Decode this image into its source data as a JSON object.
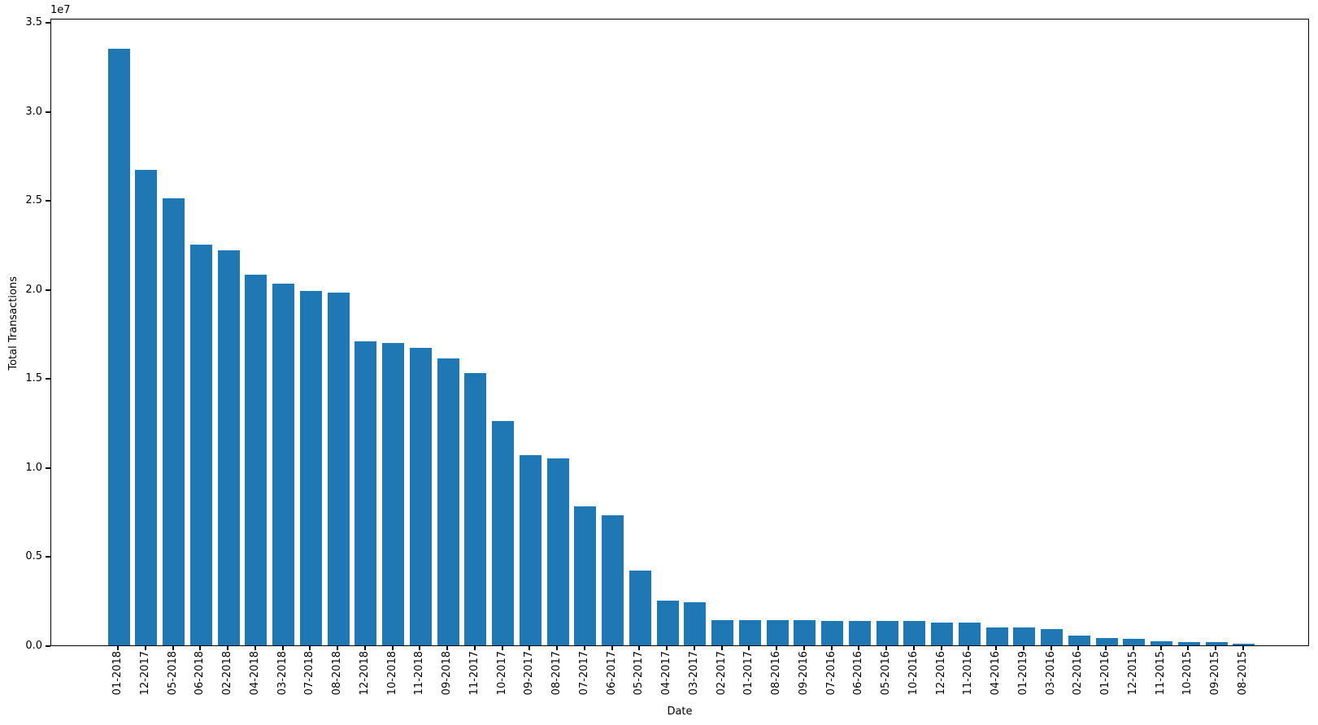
{
  "figure": {
    "background_color": "#ffffff",
    "axis_color": "#000000"
  },
  "chart_data": {
    "type": "bar",
    "title": "",
    "xlabel": "Date",
    "ylabel": "Total Transactions",
    "y_offset_text": "1e7",
    "bar_color": "#1f77b4",
    "grid": false,
    "legend": false,
    "ylim": [
      0,
      35000000
    ],
    "ytick_values": [
      0,
      5000000,
      10000000,
      15000000,
      20000000,
      25000000,
      30000000,
      35000000
    ],
    "ytick_labels": [
      "0.0",
      "0.5",
      "1.0",
      "1.5",
      "2.0",
      "2.5",
      "3.0",
      "3.5"
    ],
    "x_tick_rotation_deg": 90,
    "categories": [
      "01-2018",
      "12-2017",
      "05-2018",
      "06-2018",
      "02-2018",
      "04-2018",
      "03-2018",
      "07-2018",
      "08-2018",
      "12-2018",
      "10-2018",
      "11-2018",
      "09-2018",
      "11-2017",
      "10-2017",
      "09-2017",
      "08-2017",
      "07-2017",
      "06-2017",
      "05-2017",
      "04-2017",
      "03-2017",
      "02-2017",
      "01-2017",
      "08-2016",
      "09-2016",
      "07-2016",
      "06-2016",
      "05-2016",
      "10-2016",
      "12-2016",
      "11-2016",
      "04-2016",
      "01-2019",
      "03-2016",
      "02-2016",
      "01-2016",
      "12-2015",
      "11-2015",
      "10-2015",
      "09-2015",
      "08-2015"
    ],
    "values": [
      33500000,
      26700000,
      25100000,
      22500000,
      22200000,
      20800000,
      20300000,
      19900000,
      19800000,
      17100000,
      17000000,
      16700000,
      16100000,
      15300000,
      12600000,
      10700000,
      10500000,
      7800000,
      7300000,
      4200000,
      2500000,
      2400000,
      1400000,
      1400000,
      1400000,
      1400000,
      1350000,
      1350000,
      1350000,
      1350000,
      1300000,
      1300000,
      1000000,
      1000000,
      900000,
      550000,
      400000,
      350000,
      250000,
      200000,
      170000,
      100000
    ]
  }
}
